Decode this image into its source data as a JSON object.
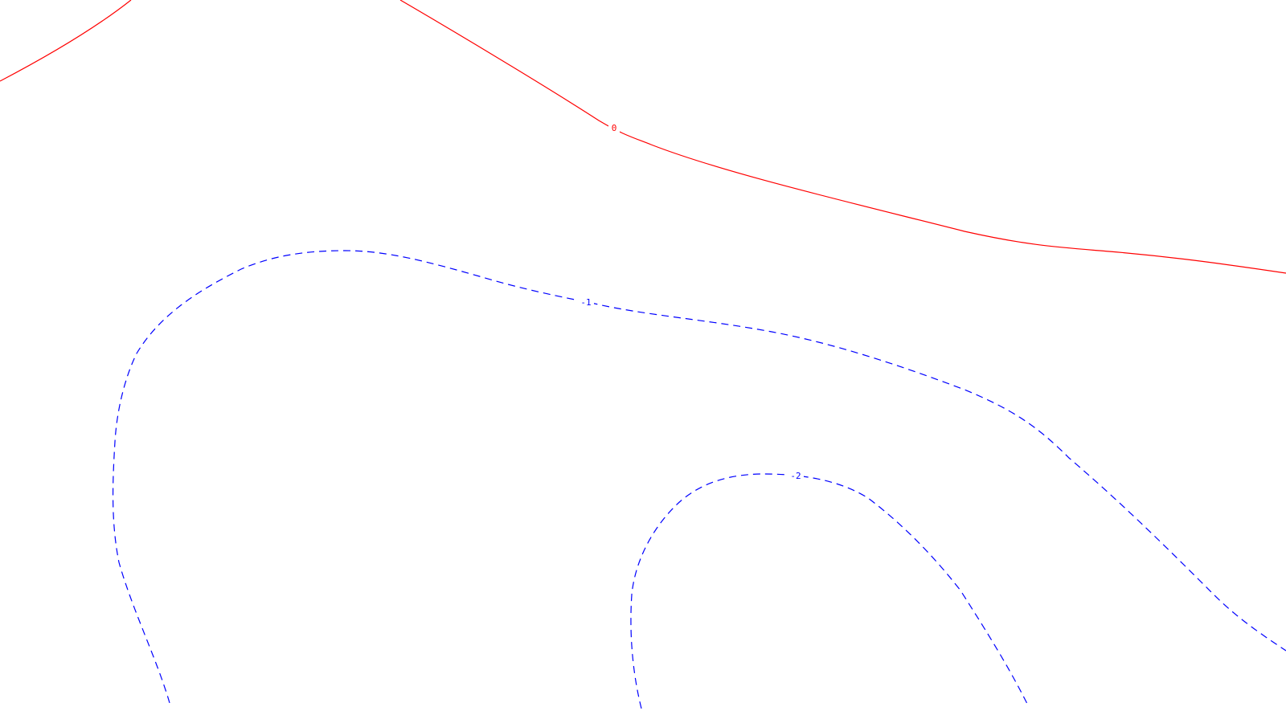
{
  "map": {
    "background": "#ffffff",
    "contours": [
      {
        "id": "contour-0-a",
        "level_label": "0",
        "color": "#ff0000",
        "style": "solid",
        "show_label": false
      },
      {
        "id": "contour-0-b",
        "level_label": "0",
        "color": "#ff0000",
        "style": "solid",
        "show_label": true
      },
      {
        "id": "contour-neg1",
        "level_label": "-1",
        "color": "#0000ff",
        "style": "dashed",
        "show_label": true
      },
      {
        "id": "contour-neg2",
        "level_label": "-2",
        "color": "#0000ff",
        "style": "dashed",
        "show_label": true
      }
    ]
  }
}
